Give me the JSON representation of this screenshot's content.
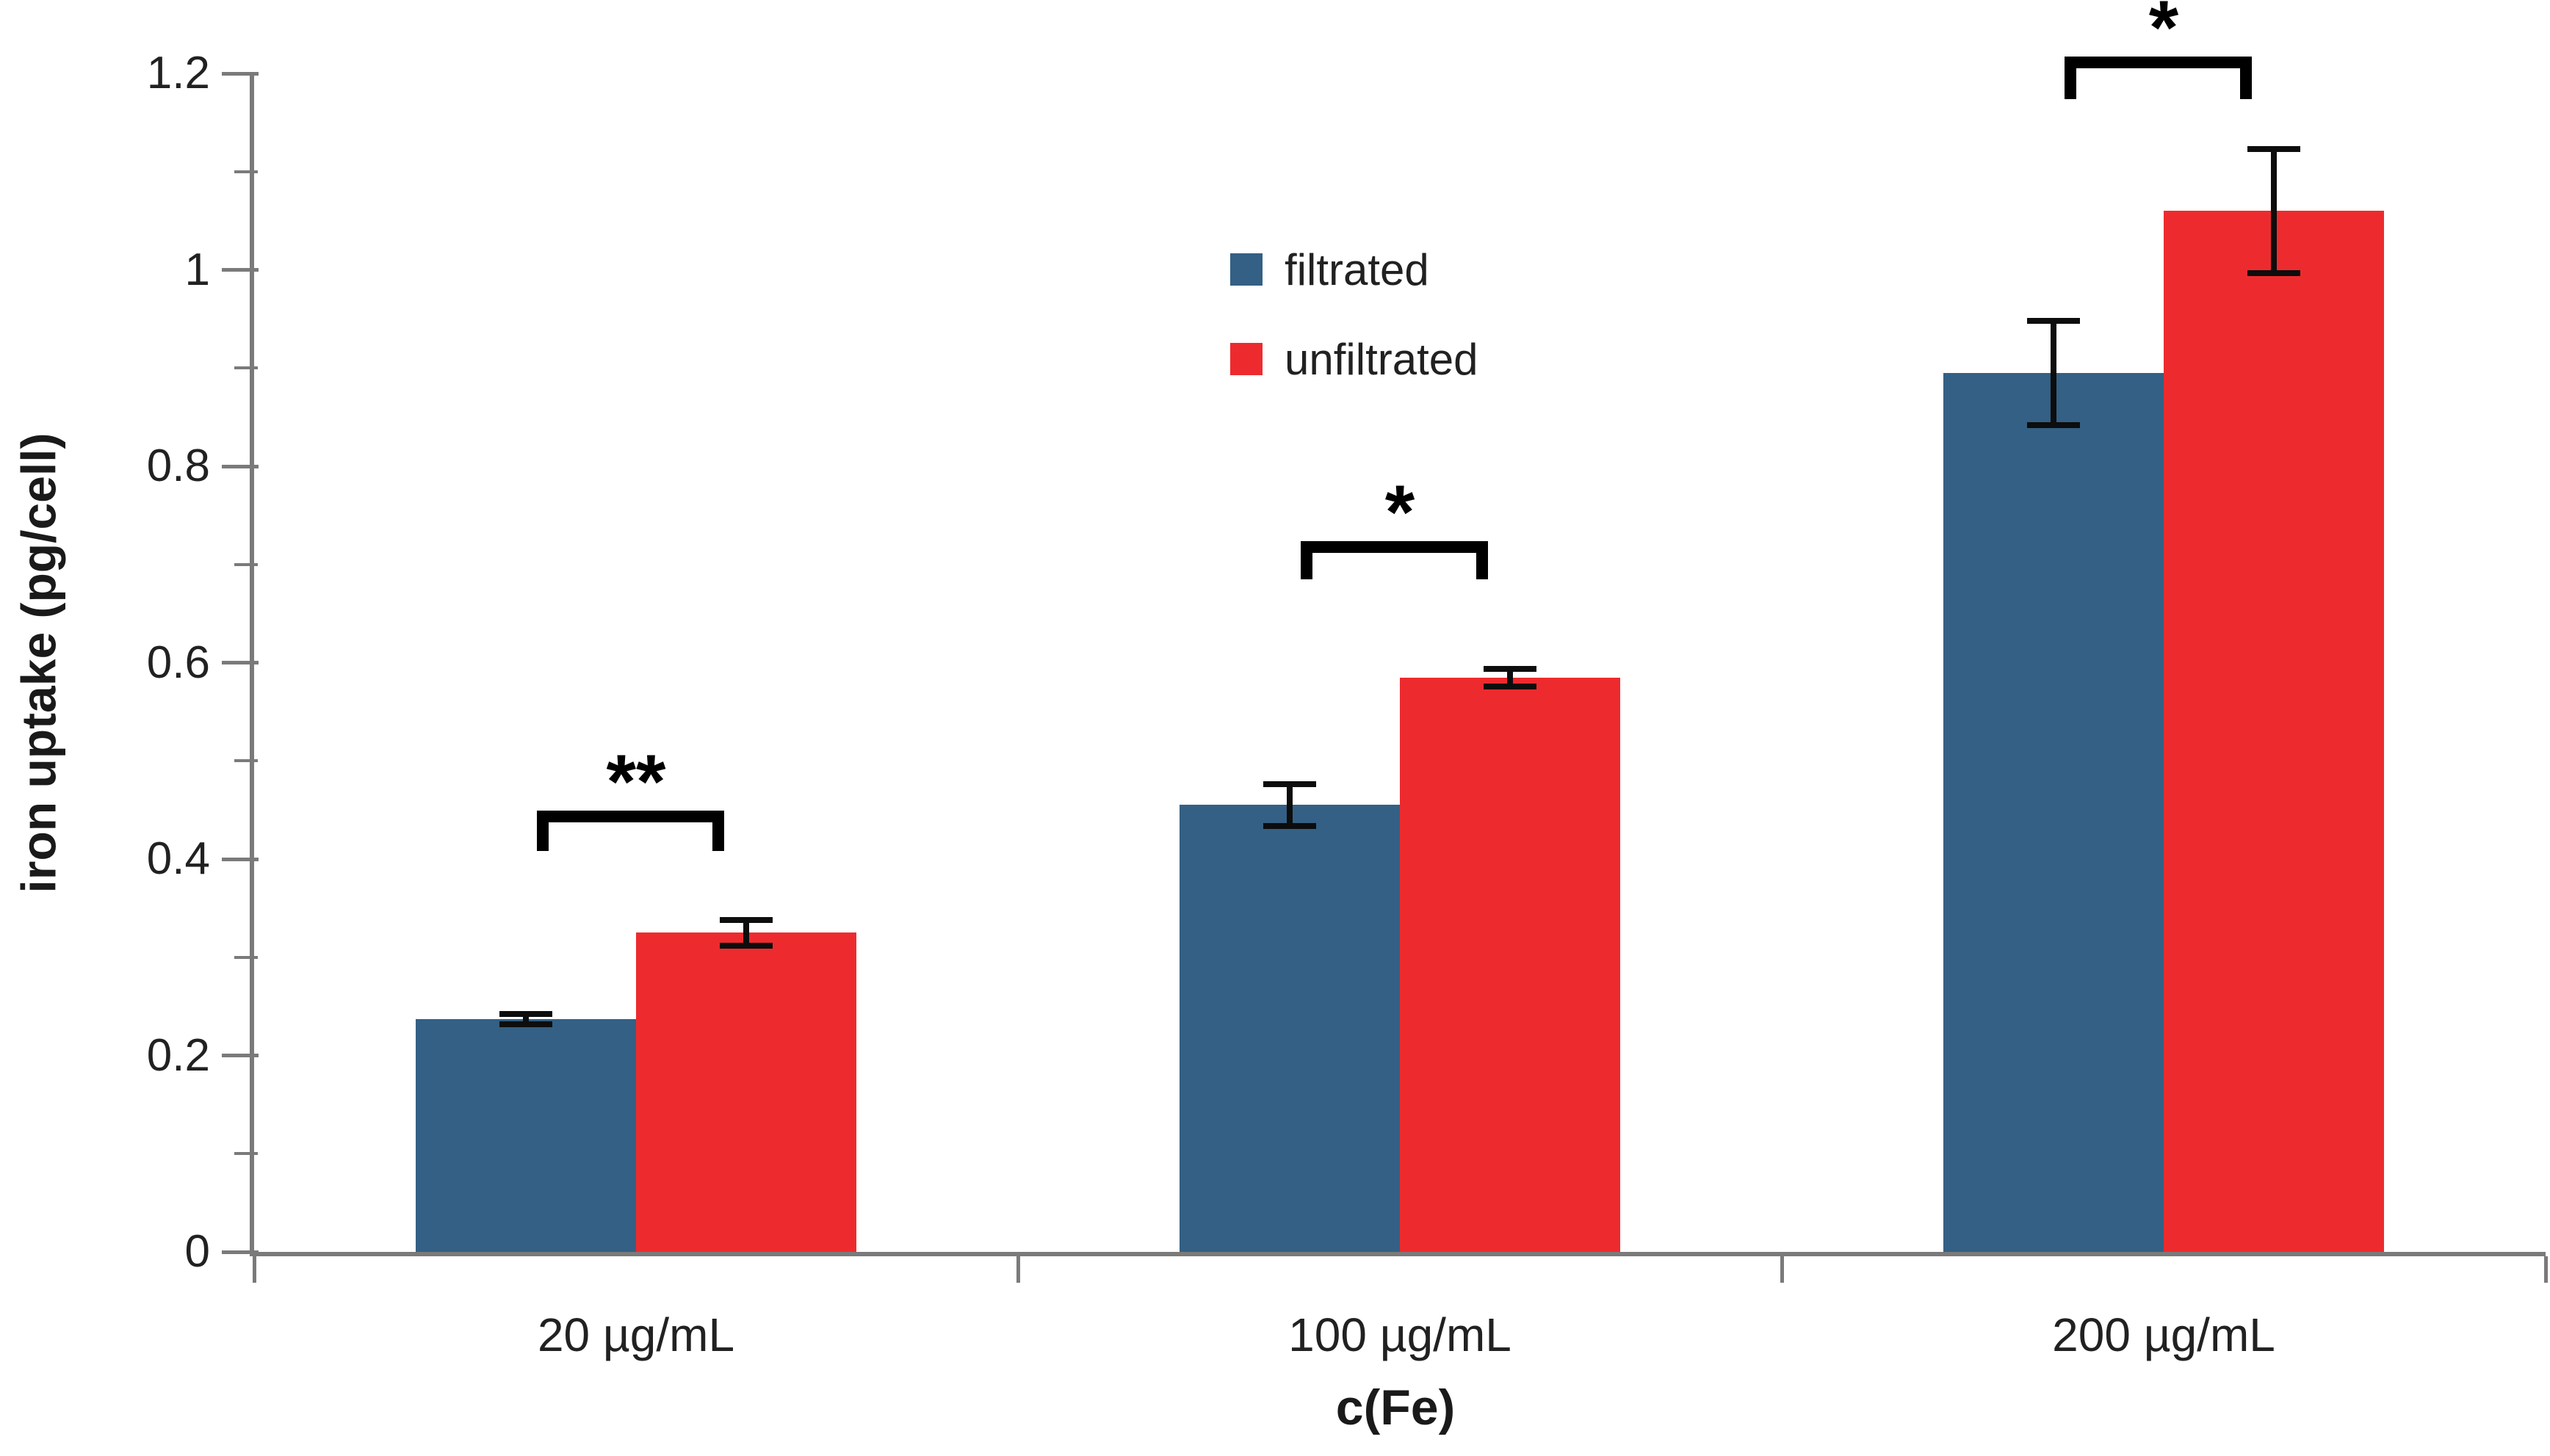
{
  "chart_data": {
    "type": "bar",
    "title": "",
    "xlabel": "c(Fe)",
    "ylabel": "iron uptake (pg/cell)",
    "categories": [
      "20 µg/mL",
      "100 µg/mL",
      "200 µg/mL"
    ],
    "series": [
      {
        "name": "filtrated",
        "color": "#336084",
        "values": [
          0.237,
          0.455,
          0.895
        ],
        "errors": [
          0.005,
          0.021,
          0.053
        ]
      },
      {
        "name": "unfiltrated",
        "color": "#ED2B2E",
        "values": [
          0.325,
          0.585,
          1.06
        ],
        "errors": [
          0.013,
          0.009,
          0.063
        ]
      }
    ],
    "ylim": [
      0,
      1.2
    ],
    "yticks_major": [
      0,
      0.2,
      0.4,
      0.6,
      0.8,
      1,
      1.2
    ],
    "ytick_labels": [
      "0",
      "0.2",
      "0.4",
      "0.6",
      "0.8",
      "1",
      "1.2"
    ],
    "yticks_minor": [
      0.1,
      0.3,
      0.5,
      0.7,
      0.9,
      1.1
    ],
    "significance": [
      {
        "label": "**",
        "y": 0.449,
        "tail": 0.041
      },
      {
        "label": "*",
        "y": 0.724,
        "tail": 0.039
      },
      {
        "label": "*",
        "y": 1.217,
        "tail": 0.043
      }
    ],
    "legend": {
      "position": "upper-center",
      "entries": [
        "filtrated",
        "unfiltrated"
      ]
    },
    "grid": false,
    "colors": {
      "axis": "#7a7a7a",
      "tick_text": "#212121",
      "error_bars": "#0d0d0d",
      "significance": "#000000",
      "background": "#ffffff"
    }
  }
}
